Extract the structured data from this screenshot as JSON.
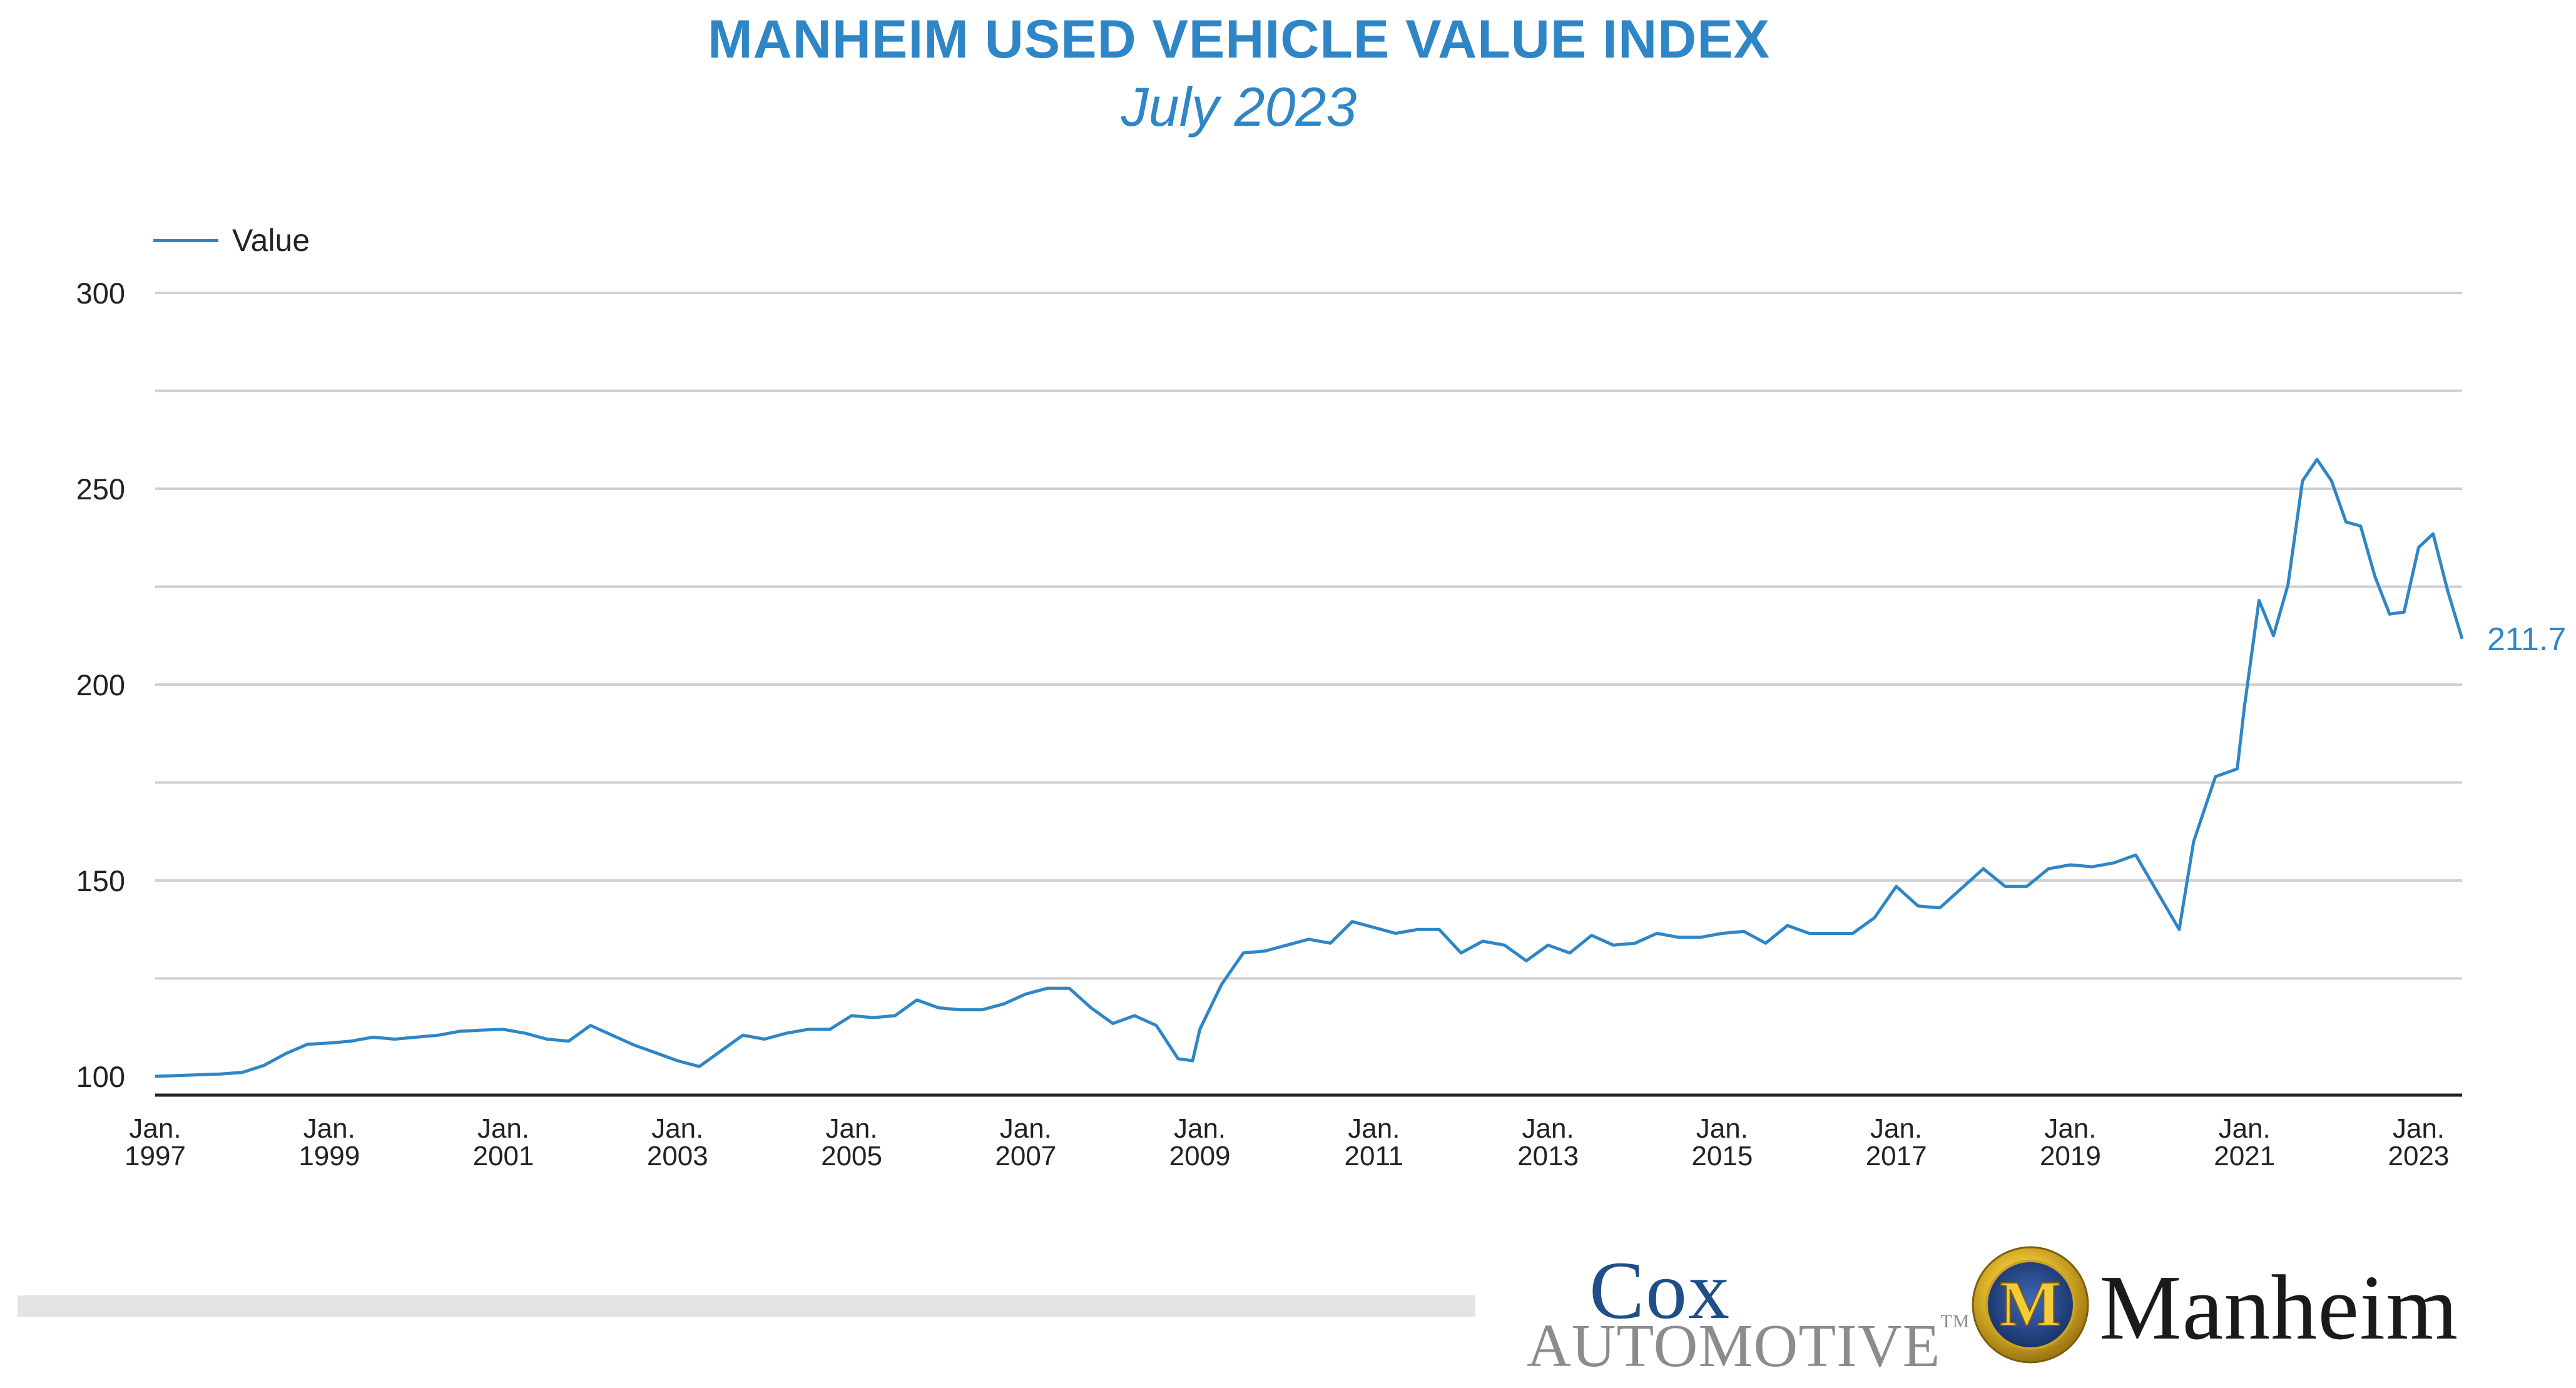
{
  "header": {
    "title": "MANHEIM USED VEHICLE VALUE INDEX",
    "subtitle": "July 2023"
  },
  "legend": {
    "label": "Value",
    "color": "#2f86c6"
  },
  "end_label": "211.7",
  "colors": {
    "line": "#2f86c6",
    "grid": "#d0d0d0",
    "axis": "#222222",
    "text": "#222222",
    "accent": "#2f86c6"
  },
  "logos": {
    "cox_top": "Cox",
    "cox_bottom": "AUTOMOTIVE",
    "cox_tm": "TM",
    "manheim_letter": "M",
    "manheim_word": "Manheim"
  },
  "chart_data": {
    "type": "line",
    "title": "MANHEIM USED VEHICLE VALUE INDEX",
    "subtitle": "July 2023",
    "ylabel": "",
    "xlabel": "",
    "ylim": [
      100,
      300
    ],
    "xlim": [
      "1997-01",
      "2023-07"
    ],
    "yticks": [
      100,
      150,
      200,
      250,
      300
    ],
    "grid": true,
    "legend_position": "top-left",
    "xtick_labels": [
      {
        "month": "Jan.",
        "year": "1997",
        "x": "1997-01"
      },
      {
        "month": "Jan.",
        "year": "1999",
        "x": "1999-01"
      },
      {
        "month": "Jan.",
        "year": "2001",
        "x": "2001-01"
      },
      {
        "month": "Jan.",
        "year": "2003",
        "x": "2003-01"
      },
      {
        "month": "Jan.",
        "year": "2005",
        "x": "2005-01"
      },
      {
        "month": "Jan.",
        "year": "2007",
        "x": "2007-01"
      },
      {
        "month": "Jan.",
        "year": "2009",
        "x": "2009-01"
      },
      {
        "month": "Jan.",
        "year": "2011",
        "x": "2011-01"
      },
      {
        "month": "Jan.",
        "year": "2013",
        "x": "2013-01"
      },
      {
        "month": "Jan.",
        "year": "2015",
        "x": "2015-01"
      },
      {
        "month": "Jan.",
        "year": "2017",
        "x": "2017-01"
      },
      {
        "month": "Jan.",
        "year": "2019",
        "x": "2019-01"
      },
      {
        "month": "Jan.",
        "year": "2021",
        "x": "2021-01"
      },
      {
        "month": "Jan.",
        "year": "2023",
        "x": "2023-01"
      }
    ],
    "series": [
      {
        "name": "Value",
        "points": [
          [
            "1997-01",
            100.0
          ],
          [
            "1997-04",
            100.2
          ],
          [
            "1997-07",
            100.4
          ],
          [
            "1997-10",
            100.6
          ],
          [
            "1998-01",
            101.0
          ],
          [
            "1998-04",
            102.8
          ],
          [
            "1998-07",
            105.8
          ],
          [
            "1998-10",
            108.2
          ],
          [
            "1999-01",
            108.5
          ],
          [
            "1999-04",
            109.0
          ],
          [
            "1999-07",
            110.0
          ],
          [
            "1999-10",
            109.5
          ],
          [
            "2000-01",
            110.0
          ],
          [
            "2000-04",
            110.5
          ],
          [
            "2000-07",
            111.5
          ],
          [
            "2000-10",
            111.8
          ],
          [
            "2001-01",
            112.0
          ],
          [
            "2001-04",
            111.0
          ],
          [
            "2001-07",
            109.5
          ],
          [
            "2001-10",
            109.0
          ],
          [
            "2002-01",
            113.0
          ],
          [
            "2002-04",
            110.5
          ],
          [
            "2002-07",
            108.0
          ],
          [
            "2002-10",
            106.0
          ],
          [
            "2003-01",
            104.0
          ],
          [
            "2003-04",
            102.5
          ],
          [
            "2003-07",
            106.5
          ],
          [
            "2003-10",
            110.5
          ],
          [
            "2004-01",
            109.5
          ],
          [
            "2004-04",
            111.0
          ],
          [
            "2004-07",
            112.0
          ],
          [
            "2004-10",
            112.0
          ],
          [
            "2005-01",
            115.5
          ],
          [
            "2005-04",
            115.0
          ],
          [
            "2005-07",
            115.5
          ],
          [
            "2005-10",
            119.5
          ],
          [
            "2006-01",
            117.5
          ],
          [
            "2006-04",
            117.0
          ],
          [
            "2006-07",
            117.0
          ],
          [
            "2006-10",
            118.5
          ],
          [
            "2007-01",
            121.0
          ],
          [
            "2007-04",
            122.5
          ],
          [
            "2007-07",
            122.5
          ],
          [
            "2007-10",
            117.5
          ],
          [
            "2008-01",
            113.5
          ],
          [
            "2008-04",
            115.5
          ],
          [
            "2008-07",
            113.0
          ],
          [
            "2008-10",
            104.5
          ],
          [
            "2008-12",
            104.0
          ],
          [
            "2009-01",
            112.0
          ],
          [
            "2009-04",
            123.5
          ],
          [
            "2009-07",
            131.5
          ],
          [
            "2009-10",
            132.0
          ],
          [
            "2010-01",
            133.5
          ],
          [
            "2010-04",
            135.0
          ],
          [
            "2010-07",
            134.0
          ],
          [
            "2010-10",
            139.5
          ],
          [
            "2011-01",
            138.0
          ],
          [
            "2011-04",
            136.5
          ],
          [
            "2011-07",
            137.5
          ],
          [
            "2011-10",
            137.5
          ],
          [
            "2012-01",
            131.5
          ],
          [
            "2012-04",
            134.5
          ],
          [
            "2012-07",
            133.5
          ],
          [
            "2012-10",
            129.5
          ],
          [
            "2013-01",
            133.5
          ],
          [
            "2013-04",
            131.5
          ],
          [
            "2013-07",
            136.0
          ],
          [
            "2013-10",
            133.5
          ],
          [
            "2014-01",
            134.0
          ],
          [
            "2014-04",
            136.5
          ],
          [
            "2014-07",
            135.5
          ],
          [
            "2014-10",
            135.5
          ],
          [
            "2015-01",
            136.5
          ],
          [
            "2015-04",
            137.0
          ],
          [
            "2015-07",
            134.0
          ],
          [
            "2015-10",
            138.5
          ],
          [
            "2016-01",
            136.5
          ],
          [
            "2016-04",
            136.5
          ],
          [
            "2016-07",
            136.5
          ],
          [
            "2016-10",
            140.5
          ],
          [
            "2017-01",
            148.5
          ],
          [
            "2017-04",
            143.5
          ],
          [
            "2017-07",
            143.0
          ],
          [
            "2017-10",
            148.0
          ],
          [
            "2018-01",
            153.0
          ],
          [
            "2018-04",
            148.5
          ],
          [
            "2018-07",
            148.5
          ],
          [
            "2018-10",
            153.0
          ],
          [
            "2019-01",
            154.0
          ],
          [
            "2019-04",
            153.5
          ],
          [
            "2019-07",
            154.5
          ],
          [
            "2019-10",
            156.5
          ],
          [
            "2020-04",
            137.5
          ],
          [
            "2020-06",
            160.0
          ],
          [
            "2020-09",
            176.5
          ],
          [
            "2020-12",
            178.5
          ],
          [
            "2021-01",
            194.5
          ],
          [
            "2021-03",
            221.5
          ],
          [
            "2021-05",
            212.5
          ],
          [
            "2021-07",
            225.5
          ],
          [
            "2021-09",
            252.0
          ],
          [
            "2021-11",
            257.5
          ],
          [
            "2022-01",
            252.0
          ],
          [
            "2022-03",
            241.5
          ],
          [
            "2022-05",
            240.5
          ],
          [
            "2022-07",
            227.5
          ],
          [
            "2022-09",
            218.0
          ],
          [
            "2022-11",
            218.5
          ],
          [
            "2023-01",
            235.0
          ],
          [
            "2023-03",
            238.5
          ],
          [
            "2023-05",
            224.0
          ],
          [
            "2023-07",
            211.7
          ]
        ]
      }
    ]
  }
}
